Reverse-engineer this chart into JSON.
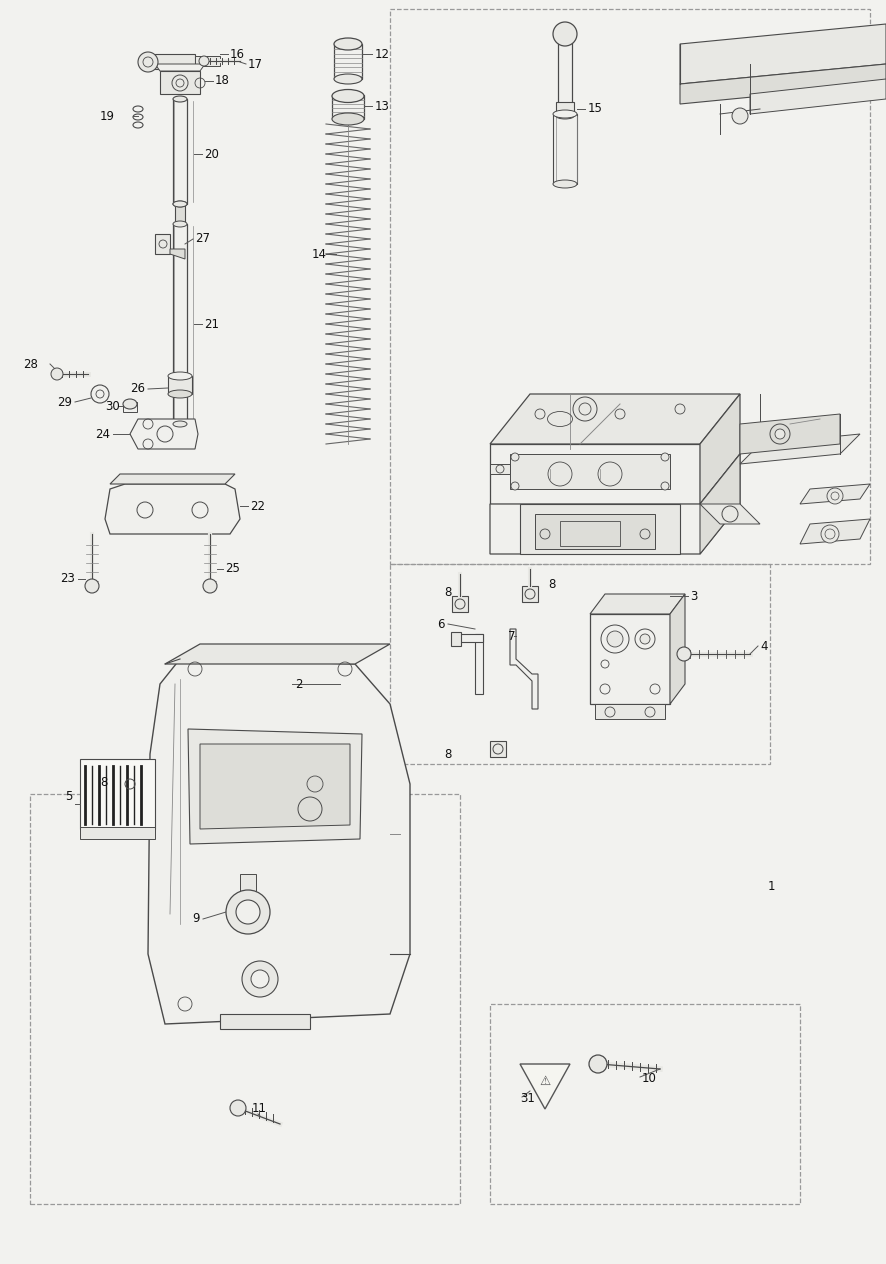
{
  "bg_color": "#f2f2ef",
  "line_color": "#4a4a4a",
  "light_line": "#888888",
  "dashed_color": "#999999",
  "label_color": "#111111",
  "label_fontsize": 8.5,
  "fill_light": "#f0f0ed",
  "fill_mid": "#e8e8e4",
  "fill_dark": "#ddddd8"
}
